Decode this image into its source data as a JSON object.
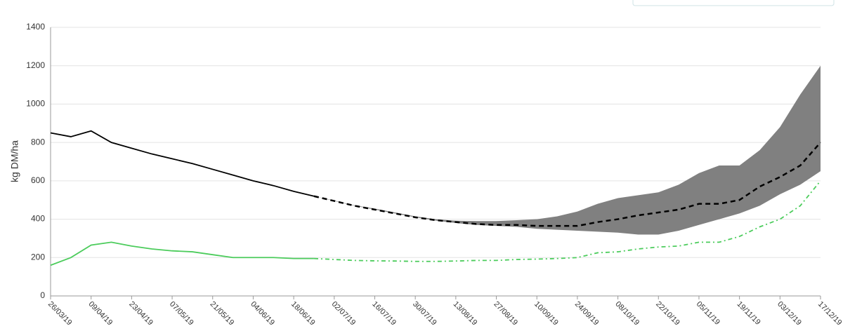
{
  "chart_data": {
    "type": "line",
    "y_label": "kg DM/ha",
    "categories": [
      "26/03/19",
      null,
      "09/04/19",
      null,
      "23/04/19",
      null,
      "07/05/19",
      null,
      "21/05/19",
      null,
      "04/06/19",
      null,
      "18/06/19",
      null,
      "02/07/19",
      null,
      "16/07/19",
      null,
      "30/07/19",
      null,
      "13/08/19",
      null,
      "27/08/19",
      null,
      "10/09/19",
      null,
      "24/09/19",
      null,
      "08/10/19",
      null,
      "22/10/19",
      null,
      "05/11/19",
      null,
      "19/11/19",
      null,
      "03/12/19",
      null,
      "17/12/19"
    ],
    "ylim": [
      0,
      1400
    ],
    "yticks": [
      0,
      200,
      400,
      600,
      800,
      1000,
      1200,
      1400
    ],
    "grid": true,
    "band": {
      "color": "#808080",
      "lower": [
        null,
        null,
        null,
        null,
        null,
        null,
        null,
        null,
        null,
        null,
        null,
        null,
        null,
        520,
        495,
        470,
        450,
        430,
        410,
        393,
        380,
        370,
        365,
        360,
        350,
        345,
        340,
        335,
        330,
        320,
        320,
        340,
        370,
        400,
        430,
        470,
        530,
        580,
        650
      ],
      "upper": [
        null,
        null,
        null,
        null,
        null,
        null,
        null,
        null,
        null,
        null,
        null,
        null,
        null,
        520,
        497,
        472,
        455,
        435,
        415,
        400,
        392,
        390,
        390,
        395,
        400,
        415,
        440,
        480,
        510,
        525,
        540,
        580,
        640,
        680,
        680,
        760,
        880,
        1050,
        1200
      ]
    },
    "series": [
      {
        "color": "#000000",
        "style": "solid",
        "values": [
          850,
          830,
          860,
          800,
          770,
          740,
          715,
          690,
          660,
          630,
          600,
          575,
          545,
          520,
          null,
          null,
          null,
          null,
          null,
          null,
          null,
          null,
          null,
          null,
          null,
          null,
          null,
          null,
          null,
          null,
          null,
          null,
          null,
          null,
          null,
          null,
          null,
          null,
          null
        ]
      },
      {
        "color": "#000000",
        "style": "dashed",
        "values": [
          null,
          null,
          null,
          null,
          null,
          null,
          null,
          null,
          null,
          null,
          null,
          null,
          null,
          520,
          495,
          470,
          450,
          430,
          410,
          395,
          385,
          375,
          370,
          370,
          365,
          365,
          365,
          385,
          400,
          420,
          435,
          450,
          480,
          480,
          500,
          570,
          620,
          680,
          800
        ]
      },
      {
        "color": "#4ccc5c",
        "style": "solid",
        "values": [
          160,
          200,
          265,
          280,
          260,
          245,
          235,
          230,
          215,
          200,
          200,
          200,
          195,
          195,
          null,
          null,
          null,
          null,
          null,
          null,
          null,
          null,
          null,
          null,
          null,
          null,
          null,
          null,
          null,
          null,
          null,
          null,
          null,
          null,
          null,
          null,
          null,
          null,
          null
        ]
      },
      {
        "color": "#4ccc5c",
        "style": "dashdot",
        "values": [
          null,
          null,
          null,
          null,
          null,
          null,
          null,
          null,
          null,
          null,
          null,
          null,
          null,
          195,
          190,
          185,
          183,
          182,
          180,
          180,
          182,
          185,
          185,
          190,
          192,
          195,
          200,
          225,
          230,
          245,
          255,
          260,
          280,
          280,
          310,
          360,
          400,
          470,
          600
        ]
      }
    ]
  }
}
